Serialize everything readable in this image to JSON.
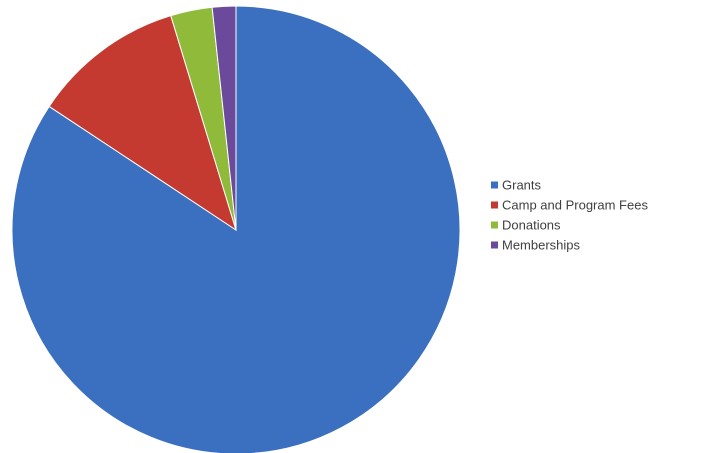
{
  "chart_data": {
    "type": "pie",
    "categories": [
      "Grants",
      "Camp and Program Fees",
      "Donations",
      "Memberships"
    ],
    "values": [
      84.3,
      11.0,
      3.0,
      1.7
    ],
    "unit": "%",
    "colors": [
      "#3a70bf",
      "#c43a31",
      "#8fba3a",
      "#6c4a9b"
    ],
    "start_angle_deg": 0,
    "direction": "clockwise",
    "legend_position": "right"
  }
}
